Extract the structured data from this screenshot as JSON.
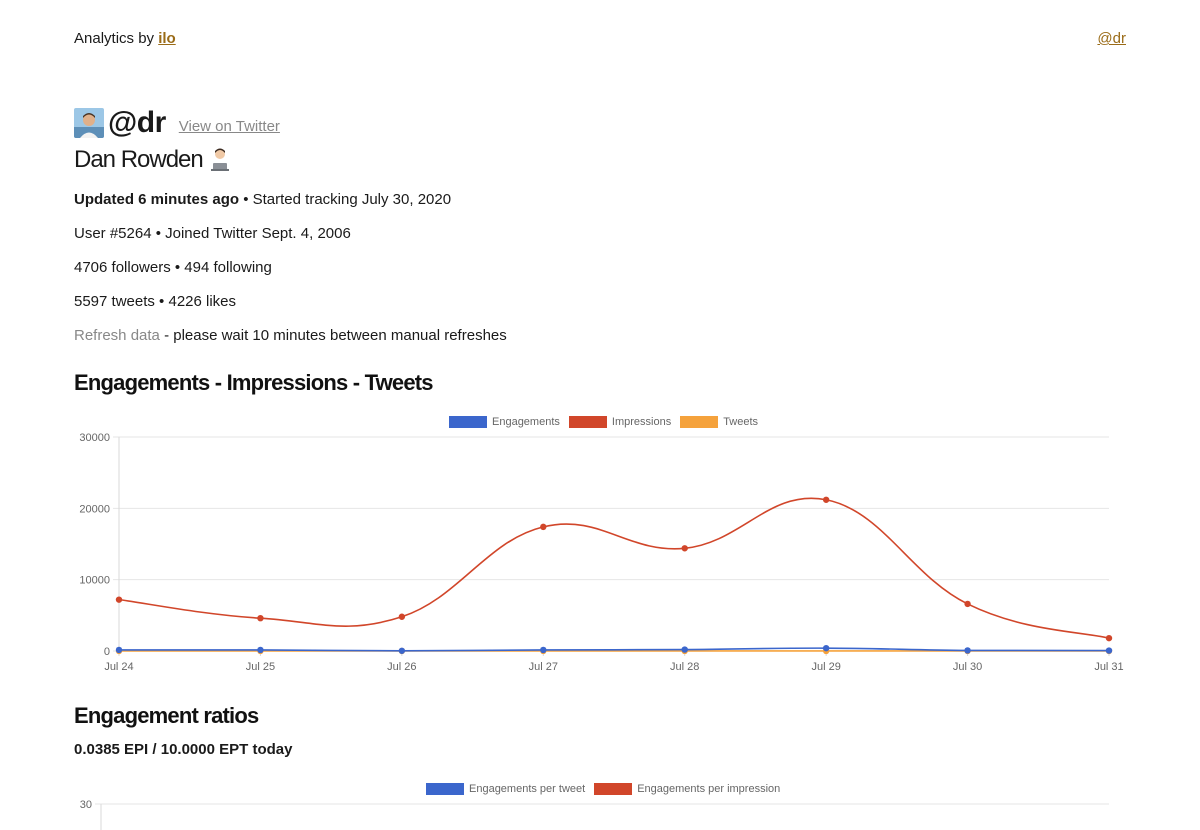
{
  "topbar": {
    "brand_prefix": "Analytics by",
    "brand_name": "ilo",
    "user_link": "@dr"
  },
  "profile": {
    "handle": "@dr",
    "view_link": "View on Twitter",
    "display_name": "Dan Rowden",
    "updated": "Updated 6 minutes ago",
    "started": "• Started tracking July 30, 2020",
    "user_line": "User #5264 • Joined Twitter Sept. 4, 2006",
    "followers_line": "4706 followers • 494 following",
    "tweets_line": "5597 tweets • 4226 likes",
    "refresh_link": "Refresh data",
    "refresh_note": "- please wait 10 minutes between manual refreshes"
  },
  "sections": {
    "main_title": "Engagements - Impressions - Tweets",
    "ratios_title": "Engagement ratios",
    "ratios_summary": "0.0385 EPI / 10.0000 EPT today"
  },
  "colors": {
    "engagements": "#3b66cc",
    "impressions": "#d1462a",
    "tweets": "#f5a23c",
    "grid": "#e6e6e6"
  },
  "chart_data": [
    {
      "type": "line",
      "categories": [
        "Jul 24",
        "Jul 25",
        "Jul 26",
        "Jul 27",
        "Jul 28",
        "Jul 29",
        "Jul 30",
        "Jul 31"
      ],
      "series": [
        {
          "name": "Engagements",
          "values": [
            150,
            150,
            30,
            150,
            200,
            400,
            80,
            60
          ]
        },
        {
          "name": "Impressions",
          "values": [
            7200,
            4600,
            4800,
            17400,
            14400,
            21200,
            6600,
            1800
          ]
        },
        {
          "name": "Tweets",
          "values": [
            8,
            7,
            6,
            9,
            8,
            10,
            5,
            4
          ]
        }
      ],
      "ylim": [
        0,
        30000
      ],
      "yticks": [
        "30000",
        "20000",
        "10000",
        "0"
      ],
      "grid": true,
      "legend": "top-center"
    },
    {
      "type": "line",
      "categories": [],
      "series": [
        {
          "name": "Engagements per tweet",
          "values": []
        },
        {
          "name": "Engagements per impression",
          "values": []
        }
      ],
      "yticks": [
        "30"
      ],
      "grid": true,
      "legend": "top-center"
    }
  ]
}
